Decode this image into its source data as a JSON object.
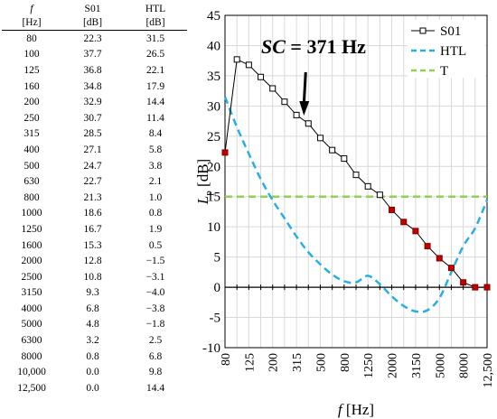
{
  "table": {
    "headers": [
      "f",
      "S01",
      "HTL"
    ],
    "units": [
      "[Hz]",
      "[dB]",
      "[dB]"
    ],
    "rows": [
      [
        "80",
        "22.3",
        "31.5"
      ],
      [
        "100",
        "37.7",
        "26.5"
      ],
      [
        "125",
        "36.8",
        "22.1"
      ],
      [
        "160",
        "34.8",
        "17.9"
      ],
      [
        "200",
        "32.9",
        "14.4"
      ],
      [
        "250",
        "30.7",
        "11.4"
      ],
      [
        "315",
        "28.5",
        "8.4"
      ],
      [
        "400",
        "27.1",
        "5.8"
      ],
      [
        "500",
        "24.7",
        "3.8"
      ],
      [
        "630",
        "22.7",
        "2.1"
      ],
      [
        "800",
        "21.3",
        "1.0"
      ],
      [
        "1000",
        "18.6",
        "0.8"
      ],
      [
        "1250",
        "16.7",
        "1.9"
      ],
      [
        "1600",
        "15.3",
        "0.5"
      ],
      [
        "2000",
        "12.8",
        "−1.5"
      ],
      [
        "2500",
        "10.8",
        "−3.1"
      ],
      [
        "3150",
        "9.3",
        "−4.0"
      ],
      [
        "4000",
        "6.8",
        "−3.8"
      ],
      [
        "5000",
        "4.8",
        "−1.8"
      ],
      [
        "6300",
        "3.2",
        "2.5"
      ],
      [
        "8000",
        "0.8",
        "6.8"
      ],
      [
        "10,000",
        "0.0",
        "9.8"
      ],
      [
        "12,500",
        "0.0",
        "14.4"
      ]
    ]
  },
  "chart_data": {
    "type": "line",
    "x": [
      "80",
      "100",
      "125",
      "160",
      "200",
      "250",
      "315",
      "400",
      "500",
      "630",
      "800",
      "1000",
      "1250",
      "1600",
      "2000",
      "2500",
      "3150",
      "4000",
      "5000",
      "6300",
      "8000",
      "10,000",
      "12,500"
    ],
    "x_tick_labels": [
      "80",
      "125",
      "200",
      "315",
      "500",
      "800",
      "1250",
      "2000",
      "3150",
      "5000",
      "8000",
      "12,500"
    ],
    "series": [
      {
        "name": "S01",
        "color": "#000000",
        "marker": "square",
        "values": [
          22.3,
          37.7,
          36.8,
          34.8,
          32.9,
          30.7,
          28.5,
          27.1,
          24.7,
          22.7,
          21.3,
          18.6,
          16.7,
          15.3,
          12.8,
          10.8,
          9.3,
          6.8,
          4.8,
          3.2,
          0.8,
          0.0,
          0.0
        ],
        "highlighted_marker_color": "#c00000",
        "highlighted_points": [
          "80",
          "2000",
          "2500",
          "3150",
          "4000",
          "5000",
          "6300",
          "8000",
          "10,000",
          "12,500"
        ]
      },
      {
        "name": "HTL",
        "color": "#29aee3",
        "style": "dashed",
        "values": [
          31.5,
          26.5,
          22.1,
          17.9,
          14.4,
          11.4,
          8.4,
          5.8,
          3.8,
          2.1,
          1.0,
          0.8,
          1.9,
          0.5,
          -1.5,
          -3.1,
          -4.0,
          -3.8,
          -1.8,
          2.5,
          6.8,
          9.8,
          14.4
        ]
      },
      {
        "name": "T",
        "color": "#92d050",
        "style": "dashed",
        "values": [
          15,
          15,
          15,
          15,
          15,
          15,
          15,
          15,
          15,
          15,
          15,
          15,
          15,
          15,
          15,
          15,
          15,
          15,
          15,
          15,
          15,
          15,
          15
        ]
      }
    ],
    "ylim": [
      -10,
      45
    ],
    "y_ticks": [
      -10,
      -5,
      0,
      5,
      10,
      15,
      20,
      25,
      30,
      35,
      40,
      45
    ],
    "ylabel_main": "L",
    "ylabel_sub": "p",
    "ylabel_unit": " [dB]",
    "xlabel_main": "f",
    "xlabel_unit": " [Hz]",
    "annotation": {
      "label": "SC",
      "value": " = 371 Hz",
      "arrow_to_x": "400"
    },
    "grid": true,
    "legend_position": "top-right"
  }
}
